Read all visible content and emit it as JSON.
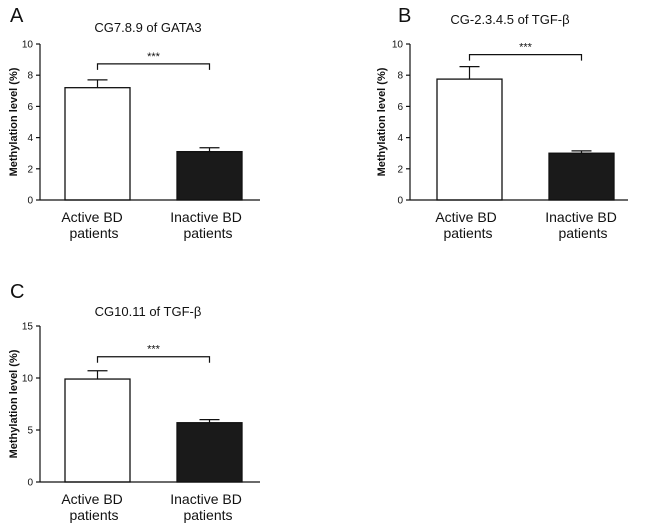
{
  "figure": {
    "panels": [
      "A",
      "B",
      "C"
    ]
  },
  "chart_data": [
    {
      "panel": "A",
      "type": "bar",
      "title": "CG7.8.9 of GATA3",
      "xlabel": "",
      "ylabel": "Methylation level (%)",
      "ylim": [
        0,
        10
      ],
      "yticks": [
        0,
        2,
        4,
        6,
        8,
        10
      ],
      "categories": [
        "Active BD patients",
        "Inactive BD patients"
      ],
      "category_lines": [
        [
          "Active BD",
          "patients"
        ],
        [
          "Inactive BD",
          "patients"
        ]
      ],
      "values": [
        7.2,
        3.1
      ],
      "errors": [
        0.5,
        0.25
      ],
      "bar_colors": [
        "#ffffff",
        "#1a1a1a"
      ],
      "significance": "***"
    },
    {
      "panel": "B",
      "type": "bar",
      "title": "CG-2.3.4.5 of TGF-β",
      "xlabel": "",
      "ylabel": "Methylation level (%)",
      "ylim": [
        0,
        10
      ],
      "yticks": [
        0,
        2,
        4,
        6,
        8,
        10
      ],
      "categories": [
        "Active BD patients",
        "Inactive BD patients"
      ],
      "category_lines": [
        [
          "Active BD",
          "patients"
        ],
        [
          "Inactive BD",
          "patients"
        ]
      ],
      "values": [
        7.75,
        3.0
      ],
      "errors": [
        0.8,
        0.15
      ],
      "bar_colors": [
        "#ffffff",
        "#1a1a1a"
      ],
      "significance": "***"
    },
    {
      "panel": "C",
      "type": "bar",
      "title": "CG10.11 of TGF-β",
      "xlabel": "",
      "ylabel": "Methylation level (%)",
      "ylim": [
        0,
        15
      ],
      "yticks": [
        0,
        5,
        10,
        15
      ],
      "categories": [
        "Active BD patients",
        "Inactive BD patients"
      ],
      "category_lines": [
        [
          "Active BD",
          "patients"
        ],
        [
          "Inactive BD",
          "patients"
        ]
      ],
      "values": [
        9.9,
        5.7
      ],
      "errors": [
        0.8,
        0.3
      ],
      "bar_colors": [
        "#ffffff",
        "#1a1a1a"
      ],
      "significance": "***"
    }
  ]
}
